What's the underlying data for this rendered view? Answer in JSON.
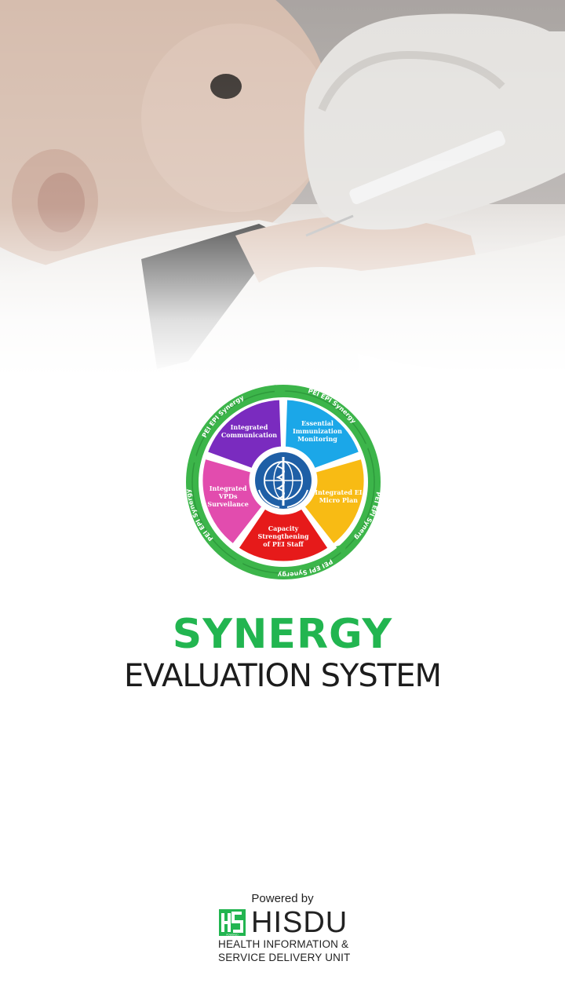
{
  "logo": {
    "segments": [
      {
        "label": "Integrated Communication",
        "color": "#7a2bbf"
      },
      {
        "label": "Essential Immunization Monitoring",
        "color": "#1ba7e8"
      },
      {
        "label": "Integrated EI Micro Plan",
        "color": "#f8bb14"
      },
      {
        "label": "Capacity Strengthening of PEI Staff",
        "color": "#e61a1a"
      },
      {
        "label": "Integrated VPDs Surveilance",
        "color": "#e24cae"
      }
    ],
    "ring_text": "PEI EPI Synergy",
    "ring_color": "#3cb54a"
  },
  "title": {
    "main": "SYNERGY",
    "sub": "EVALUATION SYSTEM",
    "main_color": "#22b550"
  },
  "footer": {
    "powered_by": "Powered by",
    "brand": "HISDU",
    "brand_mark_label": "POWERED",
    "line1": "HEALTH INFORMATION &",
    "line2": "SERVICE DELIVERY UNIT",
    "brand_color": "#22b550"
  }
}
